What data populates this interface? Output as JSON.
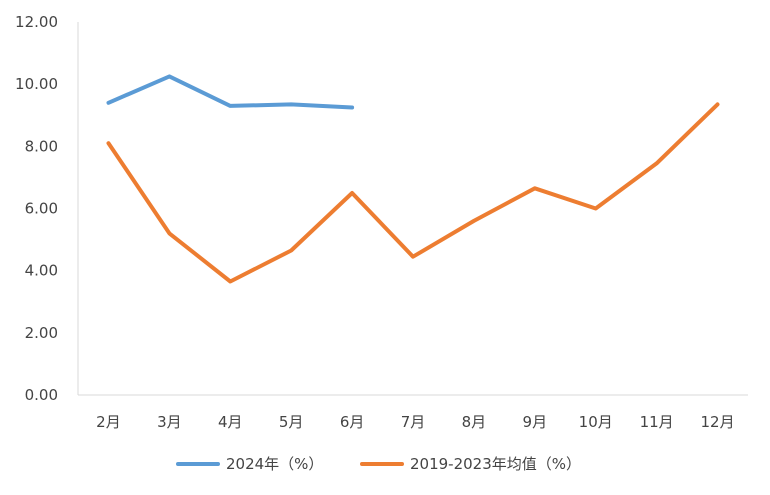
{
  "chart_data": {
    "type": "line",
    "title": "",
    "xlabel": "",
    "ylabel": "",
    "categories": [
      "2月",
      "3月",
      "4月",
      "5月",
      "6月",
      "7月",
      "8月",
      "9月",
      "10月",
      "11月",
      "12月"
    ],
    "ylim": [
      0,
      12
    ],
    "yticks": [
      "0.00",
      "2.00",
      "4.00",
      "6.00",
      "8.00",
      "10.00",
      "12.00"
    ],
    "grid": false,
    "legend_position": "bottom",
    "series": [
      {
        "name": "2024年（%）",
        "color": "#5B9BD5",
        "values": [
          9.4,
          10.25,
          9.3,
          9.35,
          9.25,
          null,
          null,
          null,
          null,
          null,
          null
        ]
      },
      {
        "name": "2019-2023年均值（%）",
        "color": "#ED7D31",
        "values": [
          8.1,
          5.2,
          3.65,
          4.65,
          6.5,
          4.45,
          5.6,
          6.65,
          6.0,
          7.45,
          9.35
        ]
      }
    ]
  }
}
